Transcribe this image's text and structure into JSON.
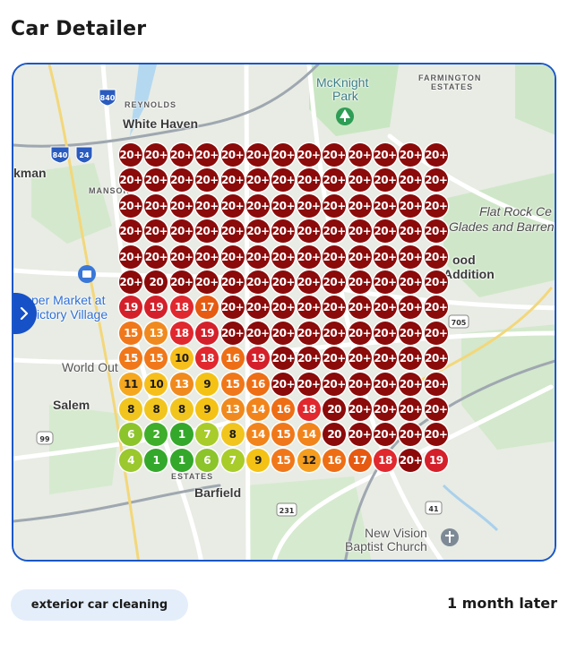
{
  "page": {
    "title": "Car Detailer"
  },
  "map": {
    "labels": [
      {
        "key": "reynolds",
        "text": "REYNOLDS",
        "style": "small"
      },
      {
        "key": "white_haven",
        "text": "White Haven",
        "style": "bold"
      },
      {
        "key": "mcknight",
        "text": "McKnight",
        "style": "teal"
      },
      {
        "key": "park",
        "text": "Park",
        "style": "teal"
      },
      {
        "key": "farmington",
        "text": "FARMINGTON",
        "style": "small"
      },
      {
        "key": "estates",
        "text": "ESTATES",
        "style": "small"
      },
      {
        "key": "kman",
        "text": "kman",
        "style": "bold"
      },
      {
        "key": "mansor",
        "text": "MANSOR",
        "style": "small"
      },
      {
        "key": "flat_rock",
        "text": "Flat Rock Ce",
        "style": "italic"
      },
      {
        "key": "glades",
        "text": "Glades and Barren",
        "style": "italic"
      },
      {
        "key": "ood",
        "text": "ood",
        "style": "bold"
      },
      {
        "key": "addition",
        "text": "Addition",
        "style": "bold"
      },
      {
        "key": "super_market",
        "text": "per Market at",
        "style": "blue"
      },
      {
        "key": "victory_village",
        "text": "ictory Village",
        "style": "blue"
      },
      {
        "key": "world_out",
        "text": "World Out",
        "style": "plain"
      },
      {
        "key": "salem",
        "text": "Salem",
        "style": "bold"
      },
      {
        "key": "estates2",
        "text": "ESTATES",
        "style": "small"
      },
      {
        "key": "barfield",
        "text": "Barfield",
        "style": "bold"
      },
      {
        "key": "new_vision",
        "text": "New Vision",
        "style": "plain"
      },
      {
        "key": "baptist",
        "text": "Baptist Church",
        "style": "plain"
      }
    ],
    "road_shields": [
      "840",
      "840",
      "24",
      "705",
      "99",
      "231",
      "41"
    ],
    "grid": {
      "rows": [
        [
          "20+",
          "20+",
          "20+",
          "20+",
          "20+",
          "20+",
          "20+",
          "20+",
          "20+",
          "20+",
          "20+",
          "20+",
          "20+"
        ],
        [
          "20+",
          "20+",
          "20+",
          "20+",
          "20+",
          "20+",
          "20+",
          "20+",
          "20+",
          "20+",
          "20+",
          "20+",
          "20+"
        ],
        [
          "20+",
          "20+",
          "20+",
          "20+",
          "20+",
          "20+",
          "20+",
          "20+",
          "20+",
          "20+",
          "20+",
          "20+",
          "20+"
        ],
        [
          "20+",
          "20+",
          "20+",
          "20+",
          "20+",
          "20+",
          "20+",
          "20+",
          "20+",
          "20+",
          "20+",
          "20+",
          "20+"
        ],
        [
          "20+",
          "20+",
          "20+",
          "20+",
          "20+",
          "20+",
          "20+",
          "20+",
          "20+",
          "20+",
          "20+",
          "20+",
          "20+"
        ],
        [
          "20+",
          "20",
          "20+",
          "20+",
          "20+",
          "20+",
          "20+",
          "20+",
          "20+",
          "20+",
          "20+",
          "20+",
          "20+"
        ],
        [
          "19",
          "19",
          "18",
          "17",
          "20+",
          "20+",
          "20+",
          "20+",
          "20+",
          "20+",
          "20+",
          "20+",
          "20+"
        ],
        [
          "15",
          "13",
          "18",
          "19",
          "20+",
          "20+",
          "20+",
          "20+",
          "20+",
          "20+",
          "20+",
          "20+",
          "20+"
        ],
        [
          "15",
          "15",
          "10",
          "18",
          "16",
          "19",
          "20+",
          "20+",
          "20+",
          "20+",
          "20+",
          "20+",
          "20+"
        ],
        [
          "11",
          "10",
          "13",
          "9",
          "15",
          "16",
          "20+",
          "20+",
          "20+",
          "20+",
          "20+",
          "20+",
          "20+"
        ],
        [
          "8",
          "8",
          "8",
          "9",
          "13",
          "14",
          "16",
          "18",
          "20",
          "20+",
          "20+",
          "20+",
          "20+"
        ],
        [
          "6",
          "2",
          "1",
          "7",
          "8",
          "14",
          "15",
          "14",
          "20",
          "20+",
          "20+",
          "20+",
          "20+"
        ],
        [
          "4",
          "1",
          "1",
          "6",
          "7",
          "9",
          "15",
          "12",
          "16",
          "17",
          "18",
          "20+",
          "19"
        ]
      ],
      "colors": {
        "20+": "#8b0a0a",
        "20": "#8b0a0a",
        "19": "#d4202a",
        "18": "#e0282e",
        "17": "#e65a12",
        "16": "#ee6e15",
        "15": "#f0781a",
        "14": "#f2841c",
        "13": "#f08a1e",
        "12": "#f59d1f",
        "11": "#f5a81f",
        "10": "#f6bf1c",
        "9": "#f4c214",
        "8": "#f1c51d",
        "7": "#a8cc2a",
        "6": "#8cc42b",
        "4": "#9ac82d",
        "2": "#3fae2a",
        "1": "#34a82a"
      }
    },
    "side_toggle_icon": "chevron-right-icon"
  },
  "footer": {
    "service_chip": "exterior car cleaning",
    "time_label": "1 month later"
  }
}
